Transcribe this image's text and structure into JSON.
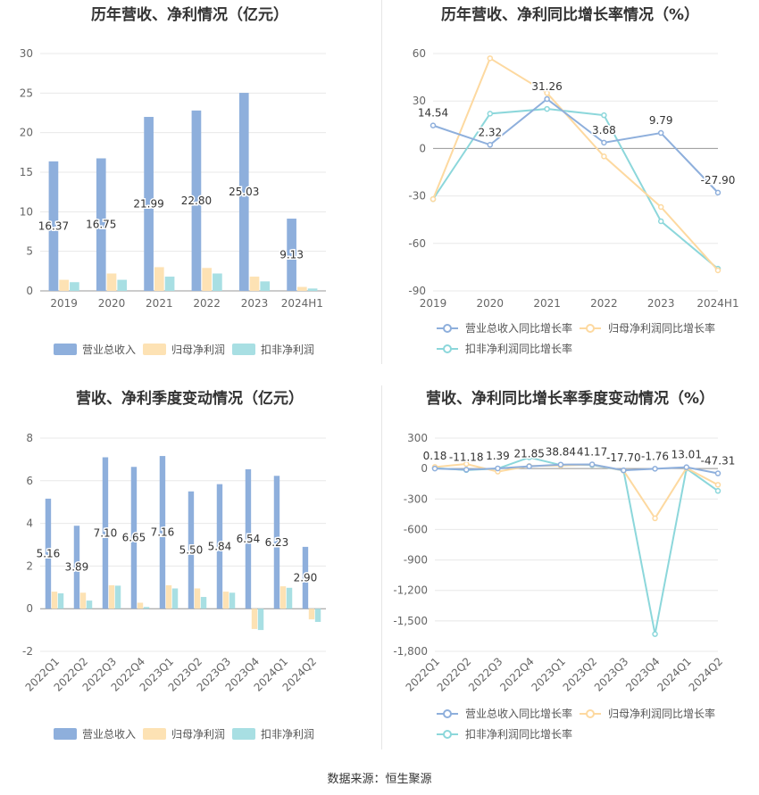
{
  "source": "数据来源：恒生聚源",
  "chart_data": [
    {
      "type": "bar",
      "title": "历年营收、净利情况（亿元）",
      "categories": [
        "2019",
        "2020",
        "2021",
        "2022",
        "2023",
        "2024H1"
      ],
      "ylim": [
        0,
        30
      ],
      "yticks": [
        "0",
        "5",
        "10",
        "15",
        "20",
        "25",
        "30"
      ],
      "grid": true,
      "legend_position": "bottom",
      "series": [
        {
          "name": "营业总收入",
          "color": "#8eafdc",
          "values": [
            16.37,
            16.75,
            21.99,
            22.8,
            25.03,
            9.13
          ],
          "labels": [
            "16.37",
            "16.75",
            "21.99",
            "22.80",
            "25.03",
            "9.13"
          ]
        },
        {
          "name": "归母净利润",
          "color": "#fde2b4",
          "values": [
            1.4,
            2.2,
            3.0,
            2.9,
            1.8,
            0.5
          ]
        },
        {
          "name": "扣非净利润",
          "color": "#a8dfe3",
          "values": [
            1.1,
            1.4,
            1.8,
            2.2,
            1.2,
            0.3
          ]
        }
      ]
    },
    {
      "type": "line",
      "title": "历年营收、净利同比增长率情况（%）",
      "categories": [
        "2019",
        "2020",
        "2021",
        "2022",
        "2023",
        "2024H1"
      ],
      "ylim": [
        -90,
        60
      ],
      "yticks": [
        "60",
        "30",
        "0",
        "-30",
        "-60",
        "-90"
      ],
      "grid": true,
      "legend_position": "bottom",
      "series": [
        {
          "name": "营业总收入同比增长率",
          "color": "#8eafdc",
          "values": [
            14.54,
            2.32,
            31.26,
            3.68,
            9.79,
            -27.9
          ],
          "labels": [
            "14.54",
            "2.32",
            "31.26",
            "3.68",
            "9.79",
            "-27.90"
          ]
        },
        {
          "name": "归母净利润同比增长率",
          "color": "#fdd9a0",
          "values": [
            -32,
            57,
            35,
            -5,
            -37,
            -77
          ]
        },
        {
          "name": "扣非净利润同比增长率",
          "color": "#8cd7db",
          "values": [
            -32,
            22,
            25,
            21,
            -46,
            -76
          ]
        }
      ]
    },
    {
      "type": "bar",
      "title": "营收、净利季度变动情况（亿元）",
      "categories": [
        "2022Q1",
        "2022Q2",
        "2022Q3",
        "2022Q4",
        "2023Q1",
        "2023Q2",
        "2023Q3",
        "2023Q4",
        "2024Q1",
        "2024Q2"
      ],
      "ylim": [
        -2,
        8
      ],
      "yticks": [
        "-2",
        "0",
        "2",
        "4",
        "6",
        "8"
      ],
      "grid": true,
      "legend_position": "bottom",
      "series": [
        {
          "name": "营业总收入",
          "color": "#8eafdc",
          "values": [
            5.16,
            3.89,
            7.1,
            6.65,
            7.16,
            5.5,
            5.84,
            6.54,
            6.23,
            2.9
          ],
          "labels": [
            "5.16",
            "3.89",
            "7.10",
            "6.65",
            "7.16",
            "5.50",
            "5.84",
            "6.54",
            "6.23",
            "2.90"
          ]
        },
        {
          "name": "归母净利润",
          "color": "#fde2b4",
          "values": [
            0.8,
            0.75,
            1.1,
            0.28,
            1.1,
            0.95,
            0.8,
            -0.95,
            1.05,
            -0.5
          ]
        },
        {
          "name": "扣非净利润",
          "color": "#a8dfe3",
          "values": [
            0.72,
            0.38,
            1.08,
            0.08,
            0.95,
            0.55,
            0.75,
            -1.0,
            0.98,
            -0.62
          ]
        }
      ]
    },
    {
      "type": "line",
      "title": "营收、净利同比增长率季度变动情况（%）",
      "categories": [
        "2022Q1",
        "2022Q2",
        "2022Q3",
        "2022Q4",
        "2023Q1",
        "2023Q2",
        "2023Q3",
        "2023Q4",
        "2024Q1",
        "2024Q2"
      ],
      "ylim": [
        -1800,
        300
      ],
      "yticks": [
        "300",
        "0",
        "-300",
        "-600",
        "-900",
        "-1,200",
        "-1,500",
        "-1,800"
      ],
      "grid": true,
      "legend_position": "bottom",
      "series": [
        {
          "name": "营业总收入同比增长率",
          "color": "#8eafdc",
          "values": [
            0.18,
            -11.18,
            1.39,
            21.85,
            38.84,
            41.17,
            -17.7,
            -1.76,
            13.01,
            -47.31
          ],
          "labels": [
            "0.18",
            "-11.18",
            "1.39",
            "21.85",
            "38.84",
            "41.17",
            "-17.70",
            "-1.76",
            "13.01",
            "-47.31"
          ]
        },
        {
          "name": "归母净利润同比增长率",
          "color": "#fdd9a0",
          "values": [
            15,
            45,
            -30,
            25,
            30,
            40,
            -20,
            -490,
            5,
            -160
          ]
        },
        {
          "name": "扣非净利润同比增长率",
          "color": "#8cd7db",
          "values": [
            5,
            -15,
            0,
            110,
            35,
            35,
            -20,
            -1630,
            0,
            -220
          ]
        }
      ]
    }
  ]
}
